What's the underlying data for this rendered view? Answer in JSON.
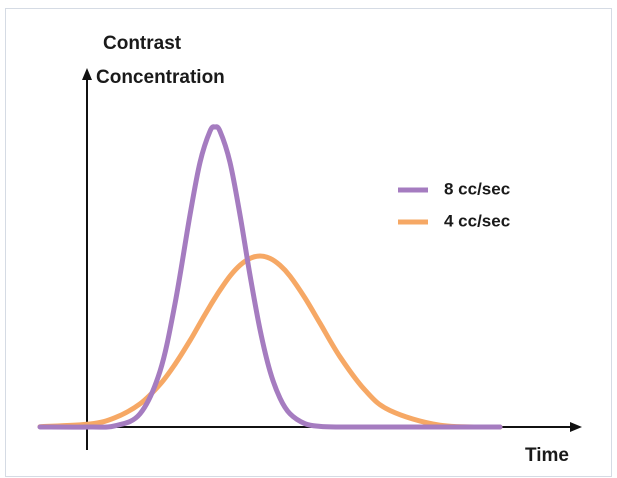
{
  "chart_data": {
    "type": "line",
    "y_label": [
      "Contrast",
      "Concentration"
    ],
    "x_label": "Time",
    "x": [
      0,
      10,
      15,
      20,
      24,
      27,
      30,
      32,
      34,
      35,
      36,
      38,
      40,
      42,
      44,
      46,
      48,
      50,
      53,
      56,
      60,
      65,
      70,
      80,
      92
    ],
    "series": [
      {
        "name": "8 cc/sec",
        "color": "#a57cc0",
        "values": [
          0,
          0,
          0.4,
          4.4,
          18.6,
          41.1,
          70.7,
          88.2,
          98.6,
          100,
          98.6,
          88.2,
          70.7,
          50.6,
          32.5,
          18.6,
          9.6,
          4.4,
          1.1,
          0.2,
          0,
          0,
          0,
          0,
          0
        ]
      },
      {
        "name": "4 cc/sec",
        "color": "#f6a865",
        "values": [
          0.1,
          1.0,
          3.1,
          7.7,
          14.2,
          20.9,
          28.8,
          34.6,
          40.3,
          43.0,
          45.6,
          50.3,
          53.9,
          56.2,
          57,
          56.2,
          53.9,
          50.3,
          43.0,
          34.6,
          23.4,
          12.3,
          5.5,
          0.6,
          0.0
        ]
      }
    ],
    "xlim": [
      0,
      108
    ],
    "ylim": [
      0,
      100
    ],
    "legend": "upper right"
  }
}
